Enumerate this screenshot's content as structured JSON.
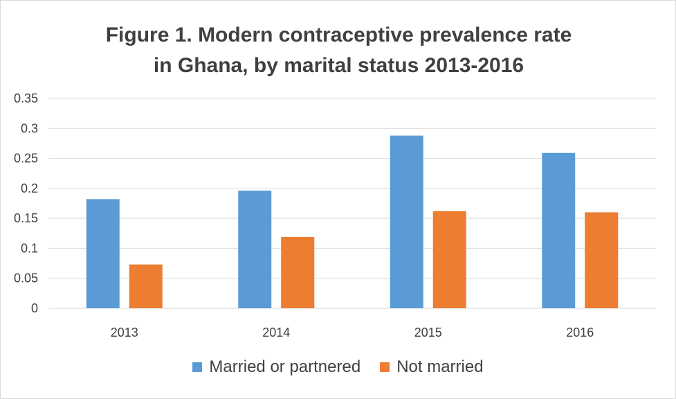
{
  "chart_data": {
    "type": "bar",
    "title_lines": [
      "Figure 1. Modern contraceptive prevalence rate",
      "in Ghana, by marital status 2013-2016"
    ],
    "categories": [
      "2013",
      "2014",
      "2015",
      "2016"
    ],
    "series": [
      {
        "name": "Married or partnered",
        "color": "#5b9bd5",
        "values": [
          0.182,
          0.196,
          0.288,
          0.259
        ]
      },
      {
        "name": "Not married",
        "color": "#ed7d31",
        "values": [
          0.073,
          0.119,
          0.162,
          0.16
        ]
      }
    ],
    "ylim": [
      0,
      0.35
    ],
    "yticks": [
      "0",
      "0.05",
      "0.1",
      "0.15",
      "0.2",
      "0.25",
      "0.3",
      "0.35"
    ],
    "grid": true,
    "legend_position": "bottom"
  }
}
